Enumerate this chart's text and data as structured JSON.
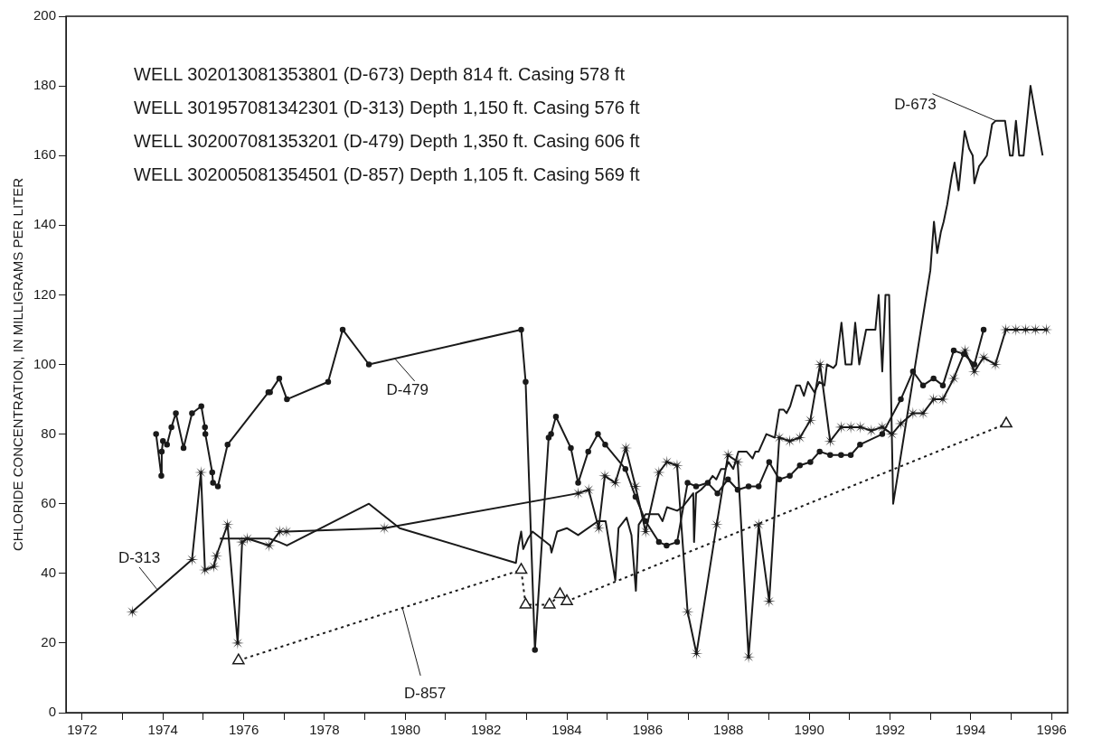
{
  "chart_data": {
    "type": "line",
    "ylabel": "CHLORIDE CONCENTRATION, IN MILLIGRAMS PER LITER",
    "annotations": [
      "WELL 302013081353801 (D-673) Depth 814 ft. Casing 578 ft",
      "WELL 301957081342301 (D-313) Depth 1,150 ft. Casing 576 ft",
      "WELL 302007081353201 (D-479) Depth 1,350 ft. Casing 606 ft",
      "WELL 302005081354501 (D-857) Depth 1,105 ft. Casing 569 ft"
    ],
    "xlim": [
      1971.6,
      1996.4
    ],
    "ylim": [
      0,
      200
    ],
    "xticks": [
      1972,
      {
        "value": 1973,
        "label": null
      },
      1974,
      {
        "value": 1975,
        "label": null
      },
      1976,
      {
        "value": 1977,
        "label": null
      },
      1978,
      {
        "value": 1979,
        "label": null
      },
      1980,
      {
        "value": 1981,
        "label": null
      },
      1982,
      {
        "value": 1983,
        "label": null
      },
      1984,
      {
        "value": 1985,
        "label": null
      },
      1986,
      {
        "value": 1987,
        "label": null
      },
      1988,
      {
        "value": 1989,
        "label": null
      },
      1990,
      {
        "value": 1991,
        "label": null
      },
      1992,
      {
        "value": 1993,
        "label": null
      },
      1994,
      {
        "value": 1995,
        "label": null
      },
      1996
    ],
    "yticks": [
      0,
      20,
      40,
      60,
      80,
      100,
      120,
      140,
      160,
      180,
      200
    ],
    "series": [
      {
        "name": "D-673",
        "color": "#1a1a1a",
        "marker": "none",
        "line_style": "solid",
        "x": [
          1975.41,
          1976.63,
          1976.88,
          1977.07,
          1979.1,
          1979.86,
          1982.74,
          1982.8,
          1982.87,
          1982.92,
          1983.04,
          1983.15,
          1983.59,
          1983.62,
          1983.76,
          1984.0,
          1984.28,
          1984.77,
          1984.96,
          1985.2,
          1985.28,
          1985.48,
          1985.6,
          1985.71,
          1985.78,
          1985.95,
          1986.27,
          1986.37,
          1986.48,
          1986.73,
          1986.86,
          1987.13,
          1987.15,
          1987.2,
          1987.32,
          1987.49,
          1987.61,
          1987.7,
          1987.82,
          1987.93,
          1988.0,
          1988.12,
          1988.25,
          1988.45,
          1988.6,
          1988.67,
          1988.75,
          1988.94,
          1989.15,
          1989.26,
          1989.37,
          1989.44,
          1989.53,
          1989.68,
          1989.77,
          1989.87,
          1989.97,
          1990.13,
          1990.25,
          1990.38,
          1990.44,
          1990.6,
          1990.67,
          1990.8,
          1990.9,
          1991.05,
          1991.14,
          1991.24,
          1991.41,
          1991.64,
          1991.72,
          1991.81,
          1991.89,
          1991.98,
          1992.08,
          1993.0,
          1993.09,
          1993.17,
          1993.26,
          1993.33,
          1993.42,
          1993.53,
          1993.6,
          1993.7,
          1993.85,
          1993.96,
          1994.05,
          1994.09,
          1994.21,
          1994.28,
          1994.4,
          1994.53,
          1994.62,
          1994.85,
          1994.97,
          1995.04,
          1995.12,
          1995.2,
          1995.31,
          1995.48,
          1995.78
        ],
        "values": [
          50,
          50,
          49,
          48,
          60,
          53,
          43,
          48,
          52,
          47,
          50,
          52,
          48,
          46,
          52,
          53,
          51,
          55,
          55,
          38,
          53,
          56,
          51,
          35,
          54,
          57,
          57,
          55,
          59,
          58,
          59,
          63,
          49,
          63,
          64,
          66,
          68,
          67,
          70,
          70,
          72,
          70,
          75,
          75,
          73,
          75,
          75,
          80,
          79,
          87,
          87,
          86,
          88,
          94,
          94,
          91,
          95,
          92,
          95,
          94,
          100,
          99,
          100,
          112,
          100,
          100,
          112,
          100,
          110,
          110,
          120,
          98,
          120,
          120,
          60,
          127,
          141,
          132,
          138,
          141,
          146,
          154,
          158,
          150,
          167,
          162,
          160,
          152,
          157,
          158,
          160,
          169,
          170,
          170,
          160,
          160,
          170,
          160,
          160,
          180,
          160
        ]
      },
      {
        "name": "D-313",
        "color": "#1a1a1a",
        "marker": "star",
        "line_style": "solid",
        "x": [
          1973.24,
          1974.72,
          1974.94,
          1975.04,
          1975.26,
          1975.32,
          1975.6,
          1975.85,
          1975.96,
          1976.09,
          1976.63,
          1976.89,
          1977.06,
          1979.48,
          1984.28,
          1984.54,
          1984.79,
          1984.94,
          1985.2,
          1985.46,
          1985.7,
          1985.95,
          1986.28,
          1986.48,
          1986.73,
          1986.99,
          1987.21,
          1987.71,
          1987.99,
          1988.23,
          1988.5,
          1988.75,
          1989.01,
          1989.26,
          1989.52,
          1989.77,
          1990.03,
          1990.27,
          1990.52,
          1990.79,
          1991.03,
          1991.27,
          1991.54,
          1991.81,
          1992.05,
          1992.27,
          1992.57,
          1992.82,
          1993.08,
          1993.31,
          1993.58,
          1993.86,
          1994.09,
          1994.32,
          1994.61,
          1994.87,
          1995.12,
          1995.36,
          1995.6,
          1995.87
        ],
        "values": [
          29,
          44,
          69,
          41,
          42,
          45,
          54,
          20,
          49,
          50,
          48,
          52,
          52,
          53,
          63,
          64,
          53,
          68,
          66,
          76,
          65,
          52,
          69,
          72,
          71,
          29,
          17,
          54,
          74,
          72,
          16,
          54,
          32,
          79,
          78,
          79,
          84,
          100,
          78,
          82,
          82,
          82,
          81,
          82,
          80,
          83,
          86,
          86,
          90,
          90,
          96,
          104,
          98,
          102,
          100,
          110,
          110,
          110,
          110,
          110
        ]
      },
      {
        "name": "D-479",
        "color": "#1a1a1a",
        "marker": "circle",
        "line_style": "solid",
        "x": [
          1973.83,
          1973.96,
          1973.97,
          1974.0,
          1974.1,
          1974.21,
          1974.32,
          1974.51,
          1974.72,
          1974.95,
          1975.04,
          1975.05,
          1975.22,
          1975.24,
          1975.36,
          1975.6,
          1976.61,
          1976.65,
          1976.88,
          1977.07,
          1978.09,
          1978.45,
          1979.1,
          1982.87,
          1982.98,
          1983.21,
          1983.55,
          1983.61,
          1983.73,
          1984.1,
          1984.28,
          1984.53,
          1984.77,
          1984.95,
          1985.45,
          1985.7,
          1985.95,
          1986.28,
          1986.47,
          1986.73,
          1986.99,
          1987.2,
          1987.49,
          1987.73,
          1987.99,
          1988.23,
          1988.5,
          1988.75,
          1989.01,
          1989.26,
          1989.52,
          1989.77,
          1990.03,
          1990.26,
          1990.52,
          1990.79,
          1991.03,
          1991.26,
          1991.81,
          1992.27,
          1992.57,
          1992.82,
          1993.08,
          1993.31,
          1993.58,
          1993.83,
          1994.09,
          1994.32
        ],
        "values": [
          80,
          68,
          75,
          78,
          77,
          82,
          86,
          76,
          86,
          88,
          82,
          80,
          69,
          66,
          65,
          77,
          92,
          92,
          96,
          90,
          95,
          110,
          100,
          110,
          95,
          18,
          79,
          80,
          85,
          76,
          66,
          75,
          80,
          77,
          70,
          62,
          55,
          49,
          48,
          49,
          66,
          65,
          66,
          63,
          67,
          64,
          65,
          65,
          72,
          67,
          68,
          71,
          72,
          75,
          74,
          74,
          74,
          77,
          80,
          90,
          98,
          94,
          96,
          94,
          104,
          103,
          100,
          110
        ]
      },
      {
        "name": "D-857",
        "color": "#1a1a1a",
        "marker": "triangle",
        "line_style": "dotted",
        "x": [
          1975.87,
          1982.87,
          1982.98,
          1983.57,
          1983.83,
          1984.0,
          1994.88
        ],
        "values": [
          15,
          41,
          31,
          31,
          34,
          32,
          83
        ]
      }
    ]
  }
}
